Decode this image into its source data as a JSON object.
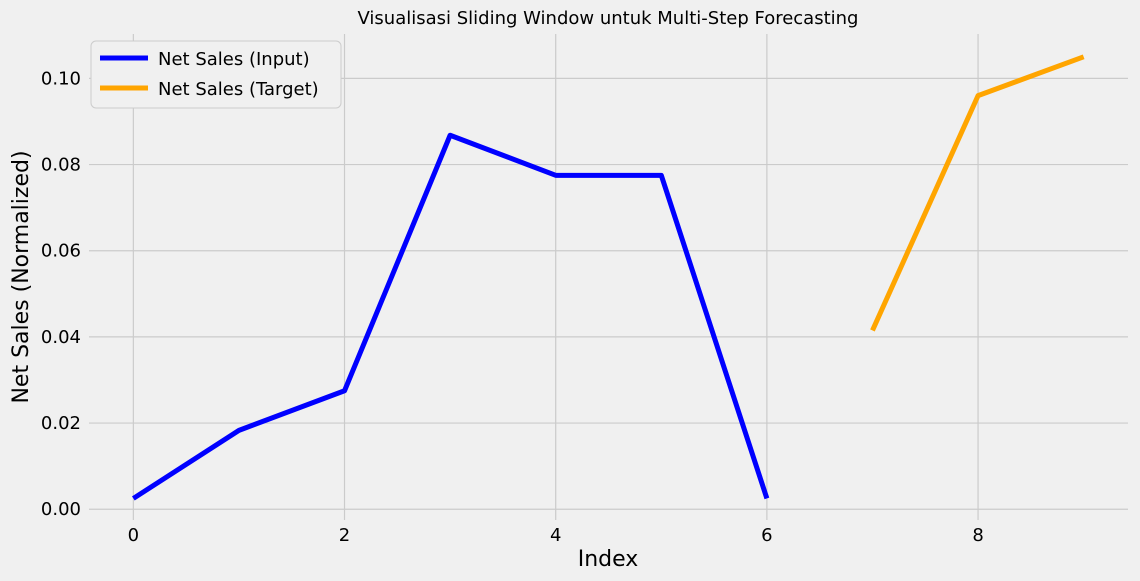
{
  "chart_data": {
    "type": "line",
    "title": "Visualisasi Sliding Window untuk Multi-Step Forecasting",
    "xlabel": "Index",
    "ylabel": "Net Sales (Normalized)",
    "xlim": [
      -0.42,
      9.42
    ],
    "ylim": [
      -0.0025,
      0.1103
    ],
    "xticks": [
      0,
      2,
      4,
      6,
      8
    ],
    "xtick_labels": [
      "0",
      "2",
      "4",
      "6",
      "8"
    ],
    "yticks": [
      0.0,
      0.02,
      0.04,
      0.06,
      0.08,
      0.1
    ],
    "ytick_labels": [
      "0.00",
      "0.02",
      "0.04",
      "0.06",
      "0.08",
      "0.10"
    ],
    "grid": true,
    "legend_position": "upper-left",
    "series": [
      {
        "name": "Net Sales (Input)",
        "color": "#0000ff",
        "x": [
          0,
          1,
          2,
          3,
          4,
          5,
          6
        ],
        "values": [
          0.0025,
          0.0183,
          0.0275,
          0.0868,
          0.0775,
          0.0775,
          0.0025
        ]
      },
      {
        "name": "Net Sales (Target)",
        "color": "#ffa500",
        "x": [
          7,
          8,
          9
        ],
        "values": [
          0.0415,
          0.096,
          0.105
        ]
      }
    ]
  }
}
